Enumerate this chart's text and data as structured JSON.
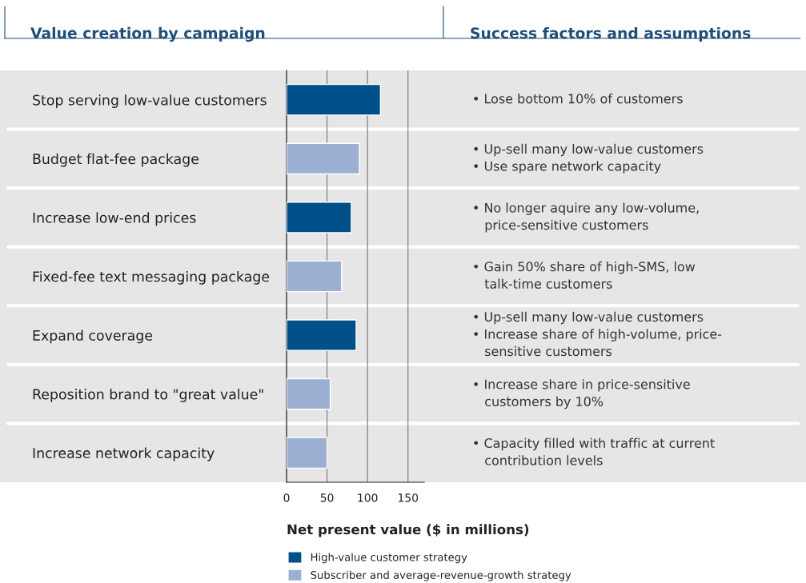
{
  "chart_data": {
    "type": "bar",
    "orientation": "horizontal",
    "title": "Value creation by campaign",
    "xlabel": "Net present value ($ in millions)",
    "categories": [
      "Stop serving low-value customers",
      "Budget flat-fee package",
      "Increase low-end prices",
      "Fixed-fee text messaging package",
      "Expand coverage",
      "Reposition brand to \"great value\"",
      "Increase network capacity"
    ],
    "series": [
      {
        "name": "High-value customer strategy",
        "color": "#00508a",
        "values": [
          116,
          null,
          80,
          null,
          86,
          null,
          null
        ]
      },
      {
        "name": "Subscriber and average-revenue-growth strategy",
        "color": "#9bafd2",
        "values": [
          null,
          90,
          null,
          68,
          null,
          54,
          50
        ]
      }
    ],
    "xlim": [
      0,
      170
    ],
    "xticks": [
      0,
      50,
      100,
      150
    ],
    "grid": "x",
    "legend": "bottom",
    "annotations": [
      "Success factors and assumptions",
      "• Lose bottom 10% of customers",
      "• Up-sell many low-value customers\n• Use spare network capacity",
      "• No longer aquire any low-volume,\n   price-sensitive customers",
      "• Gain 50% share of high-SMS, low\n   talk-time customers",
      "• Up-sell many low-value customers\n• Increase share of high-volume, price-\n   sensitive customers",
      "• Increase share in price-sensitive\n   customers by 10%",
      "• Capacity filled with traffic at current\n   contribution levels"
    ]
  }
}
